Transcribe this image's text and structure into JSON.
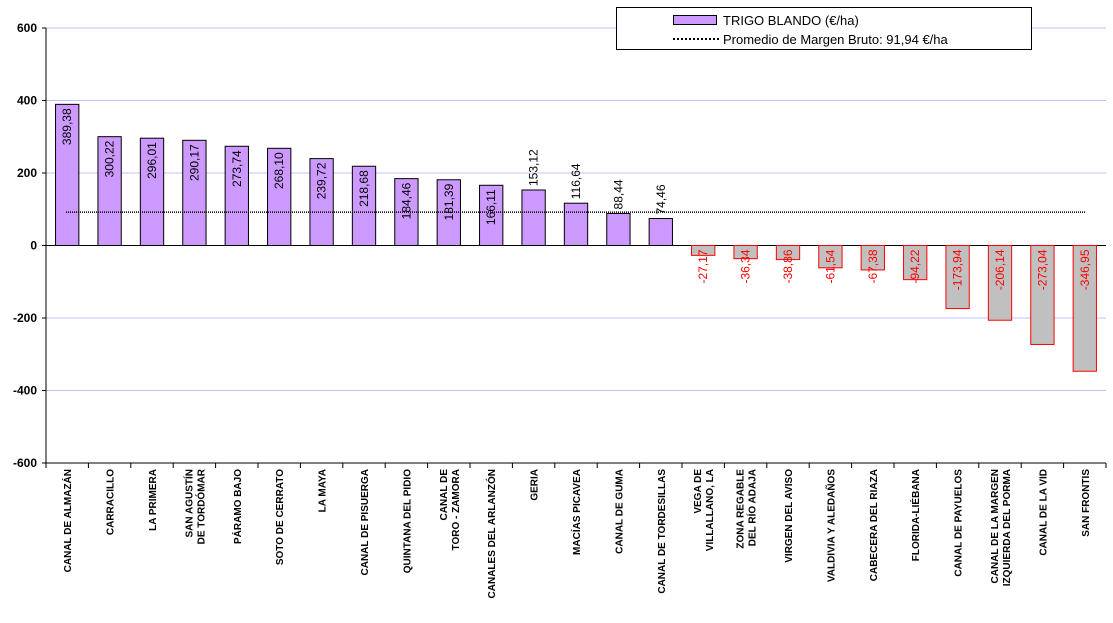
{
  "chart_data": {
    "type": "bar",
    "title": "",
    "xlabel": "",
    "ylabel": "",
    "ylim": [
      -600,
      600
    ],
    "yticks": [
      600,
      400,
      200,
      0,
      -200,
      -400,
      -600
    ],
    "grid": true,
    "categories": [
      "CANAL DE ALMAZÁN",
      "CARRACILLO",
      "LA PRIMERA",
      "SAN AGUSTÍN DE TORDÓMAR",
      "PÁRAMO BAJO",
      "SOTO DE CERRATO",
      "LA MAYA",
      "CANAL DE PISUERGA",
      "QUINTANA DEL PIDIO",
      "CANAL DE TORO - ZAMORA",
      "CANALES DEL ARLANZÓN",
      "GERIA",
      "MACÍAS PICAVEA",
      "CANAL DE GUMA",
      "CANAL DE TORDESILLAS",
      "VEGA DE VILLALLANO, LA",
      "ZONA REGABLE DEL RÍO ADAJA",
      "VIRGEN DEL AVISO",
      "VALDIVIA Y ALEDAÑOS",
      "CABECERA DEL RIAZA",
      "FLORIDA-LIÉBANA",
      "CANAL DE PAYUELOS",
      "CANAL DE LA MARGEN IZQUIERDA DEL PORMA",
      "CANAL DE LA VID",
      "SAN FRONTIS"
    ],
    "values": [
      389.38,
      300.22,
      296.01,
      290.17,
      273.74,
      268.1,
      239.72,
      218.68,
      184.46,
      181.39,
      166.11,
      153.12,
      116.64,
      88.44,
      74.46,
      -27.17,
      -36.34,
      -38.86,
      -61.54,
      -67.38,
      -94.22,
      -173.94,
      -206.14,
      -273.04,
      -346.95
    ],
    "value_labels": [
      "389,38",
      "300,22",
      "296,01",
      "290,17",
      "273,74",
      "268,10",
      "239,72",
      "218,68",
      "184,46",
      "181,39",
      "166,11",
      "153,12",
      "116,64",
      "88,44",
      "74,46",
      "-27,17",
      "-36,34",
      "-38,86",
      "-61,54",
      "-67,38",
      "-94,22",
      "-173,94",
      "-206,14",
      "-273,04",
      "-346,95"
    ],
    "series": [
      {
        "name": "TRIGO BLANDO (€/ha)",
        "color_positive": "#cc99ff",
        "color_negative": "#c0c0c0"
      }
    ],
    "average_line": {
      "name": "Promedio de Margen Bruto: 91,94 €/ha",
      "value": 91.94
    },
    "legend_position": "top-right",
    "colors": {
      "grid": "#c0c0ff",
      "negative_label": "#ff0000",
      "negative_border": "#ff0000",
      "positive_label": "#000000"
    }
  }
}
